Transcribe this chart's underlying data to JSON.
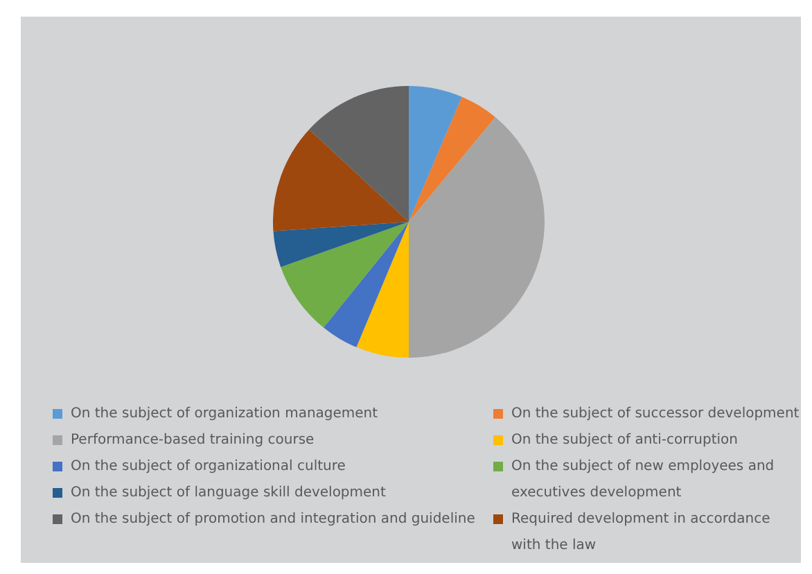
{
  "chart_data": {
    "type": "pie",
    "categories": [
      "On the subject of organization management",
      "On the subject of successor development",
      "Performance-based training course",
      "On the subject of anti-corruption",
      "On the subject of organizational culture",
      "On the subject of new employees and executives development",
      "On the subject of language skill development",
      "Required development in accordance with the law",
      "On the subject of promotion and integration and guideline"
    ],
    "values": [
      6.4,
      4.6,
      39,
      6.3,
      4.5,
      8.8,
      4.3,
      13,
      13.1
    ],
    "colors": [
      "#5b9bd5",
      "#ed7d31",
      "#a5a5a5",
      "#ffc000",
      "#4472c4",
      "#70ad47",
      "#255e91",
      "#9e480e",
      "#636363"
    ],
    "legend": "bottom"
  }
}
